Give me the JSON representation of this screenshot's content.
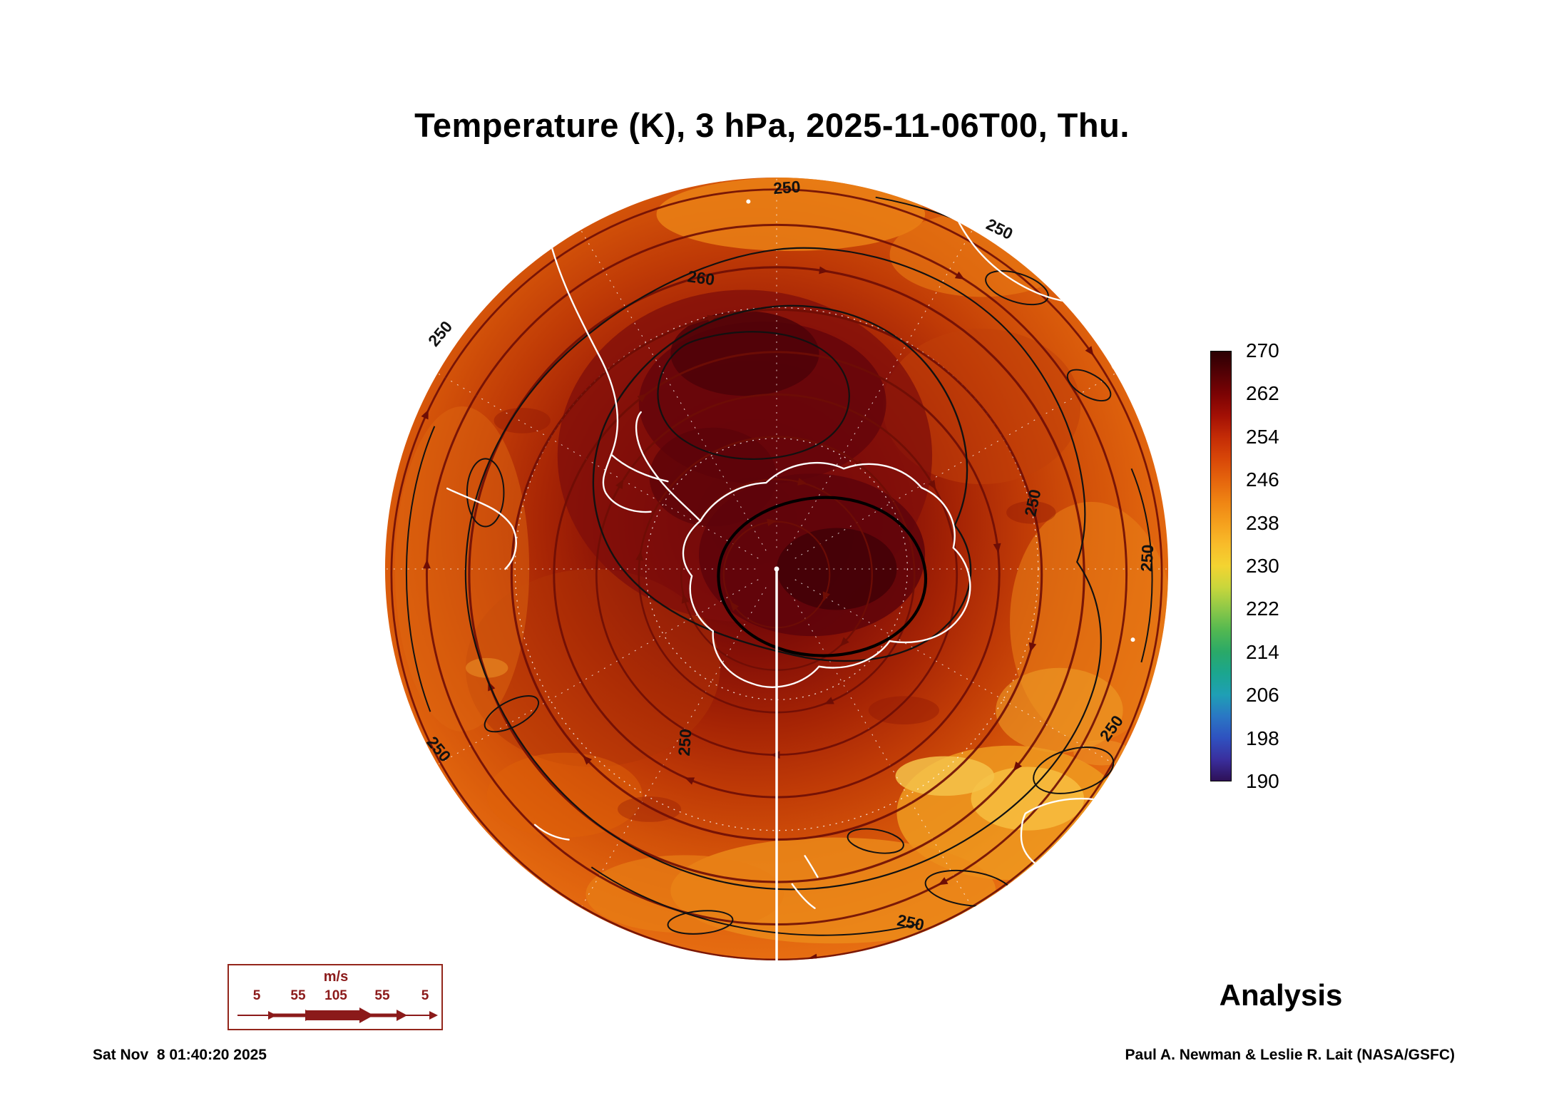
{
  "header": {
    "title": "Temperature (K), 3 hPa, 2025-11-06T00, Thu."
  },
  "footer": {
    "timestamp": "Sat Nov  8 01:40:20 2025",
    "credit": "Paul A. Newman & Leslie R. Lait (NASA/GSFC)",
    "analysis_label": "Analysis"
  },
  "wind_legend": {
    "unit": "m/s",
    "tick_values": [
      "5",
      "55",
      "105",
      "55",
      "5"
    ]
  },
  "chart_data": {
    "type": "heatmap",
    "title": "Temperature (K), 3 hPa, 2025-11-06T00, Thu.",
    "variable": "Temperature",
    "units": "K",
    "pressure_level_hPa": 3,
    "valid_time": "2025-11-06T00",
    "valid_day": "Thu.",
    "projection": "southern-hemisphere polar stereographic (Antarctica centered)",
    "annotations": [
      "Analysis"
    ],
    "temperature_range_K": [
      190,
      270
    ],
    "colorbar": {
      "min": 190,
      "max": 270,
      "tick_labels": [
        "270",
        "262",
        "254",
        "246",
        "238",
        "230",
        "222",
        "214",
        "206",
        "198",
        "190"
      ],
      "stops": [
        {
          "value": 270,
          "color": "#2b0003"
        },
        {
          "value": 266,
          "color": "#530105"
        },
        {
          "value": 262,
          "color": "#7c0304"
        },
        {
          "value": 258,
          "color": "#a31005"
        },
        {
          "value": 254,
          "color": "#c42c06"
        },
        {
          "value": 250,
          "color": "#d84708"
        },
        {
          "value": 246,
          "color": "#e5650d"
        },
        {
          "value": 242,
          "color": "#ef8413"
        },
        {
          "value": 238,
          "color": "#f5a01d"
        },
        {
          "value": 234,
          "color": "#f8bc2a"
        },
        {
          "value": 230,
          "color": "#f3d431"
        },
        {
          "value": 226,
          "color": "#c8d63c"
        },
        {
          "value": 222,
          "color": "#8cc848"
        },
        {
          "value": 218,
          "color": "#52b851"
        },
        {
          "value": 214,
          "color": "#2aa968"
        },
        {
          "value": 210,
          "color": "#1ba68f"
        },
        {
          "value": 206,
          "color": "#1f9fb5"
        },
        {
          "value": 202,
          "color": "#2a77c4"
        },
        {
          "value": 198,
          "color": "#2f52c0"
        },
        {
          "value": 194,
          "color": "#3a2f9e"
        },
        {
          "value": 190,
          "color": "#2e1157"
        }
      ]
    },
    "contour_labels": [
      "250",
      "250",
      "260",
      "250",
      "250",
      "250",
      "250",
      "250",
      "250",
      "250"
    ],
    "wind_speed_legend": {
      "unit": "m/s",
      "values": [
        5,
        55,
        105,
        55,
        5
      ]
    },
    "map_colors": {
      "streamlines": "#6e0d05",
      "temperature_contours": "#111111",
      "coastlines": "#ffffff",
      "graticule": "#ffffff"
    }
  }
}
